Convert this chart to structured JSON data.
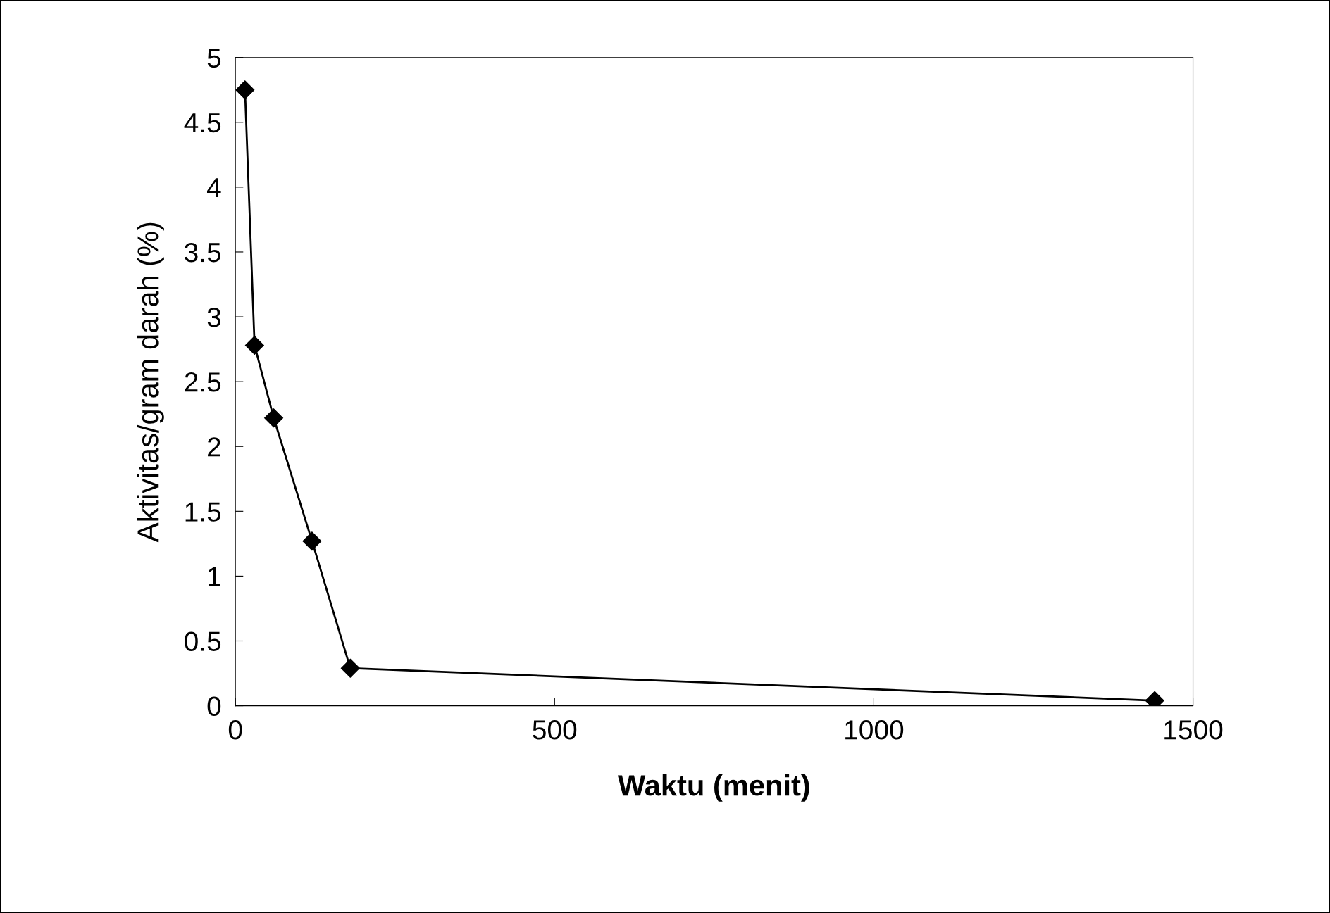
{
  "chart_data": {
    "type": "line",
    "xlabel": "Waktu (menit)",
    "ylabel": "Aktivitas/gram darah (%)",
    "x": [
      15,
      30,
      60,
      120,
      180,
      1440
    ],
    "series": [
      {
        "color": "#000000",
        "values": [
          4.75,
          2.78,
          2.22,
          1.27,
          0.29,
          0.04
        ]
      }
    ],
    "xlim": [
      0,
      1500
    ],
    "xticks": [
      0,
      500,
      1000,
      1500
    ],
    "ylim": [
      0,
      5
    ],
    "yticks": [
      0,
      0.5,
      1,
      1.5,
      2,
      2.5,
      3,
      3.5,
      4,
      4.5,
      5
    ],
    "marker": "diamond",
    "line_style": "solid",
    "grid": false,
    "legend": false
  }
}
